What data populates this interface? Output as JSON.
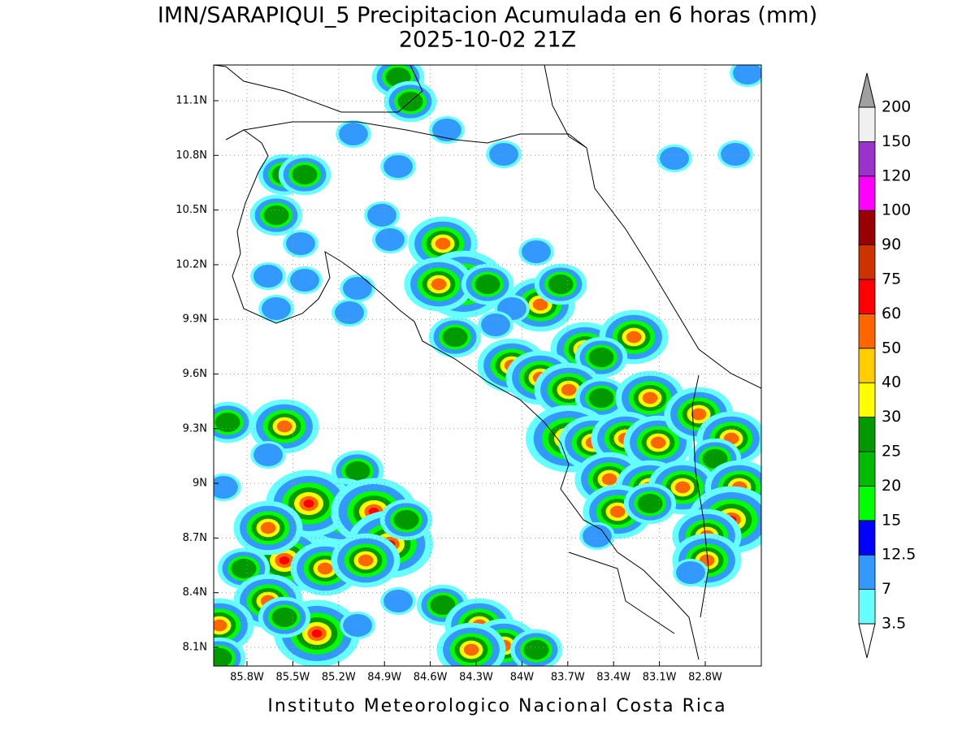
{
  "title": "IMN/SARAPIQUI_5 Precipitacion Acumulada en 6 horas (mm)",
  "subtitle": "2025-10-02 21Z",
  "lat_ticks": [
    "11.1N",
    "10.8N",
    "10.5N",
    "10.2N",
    "9.9N",
    "9.6N",
    "9.3N",
    "9N",
    "8.7N",
    "8.4N",
    "8.1N"
  ],
  "lon_ticks": [
    "85.8W",
    "85.5W",
    "85.2W",
    "84.9W",
    "84.6W",
    "84.3W",
    "84W",
    "83.7W",
    "83.4W",
    "83.1W",
    "82.8W"
  ],
  "colorbar": {
    "levels": [
      3.5,
      7,
      12.5,
      15,
      20,
      25,
      30,
      40,
      50,
      60,
      75,
      90,
      100,
      120,
      150,
      200
    ],
    "colors": [
      "#66ffff",
      "#3399ff",
      "#0000ff",
      "#00ff00",
      "#00bb00",
      "#009900",
      "#ffff00",
      "#ffcc00",
      "#ff6600",
      "#ff0000",
      "#cc3300",
      "#990000",
      "#ff00ff",
      "#9933cc",
      "#f0f0f0"
    ],
    "over_color": "#a0a0a0",
    "under_color": "#ffffff"
  },
  "footer": "Instituto Meteorologico Nacional Costa Rica"
}
